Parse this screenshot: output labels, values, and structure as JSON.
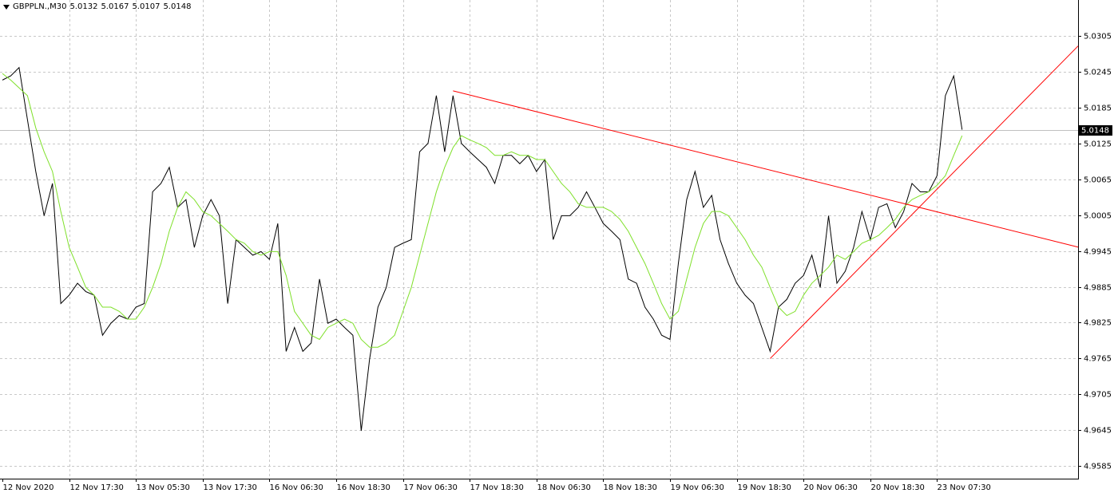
{
  "chart_data": {
    "type": "line",
    "title": "GBPPLN.,M30",
    "ohlc": [
      5.0132,
      5.0167,
      5.0107,
      5.0148
    ],
    "categories": [
      "12 Nov 2020",
      null,
      null,
      null,
      null,
      null,
      null,
      null,
      "12 Nov 17:30",
      null,
      null,
      null,
      null,
      null,
      null,
      null,
      "13 Nov 05:30",
      null,
      null,
      null,
      null,
      null,
      null,
      null,
      "13 Nov 17:30",
      null,
      null,
      null,
      null,
      null,
      null,
      null,
      "16 Nov 06:30",
      null,
      null,
      null,
      null,
      null,
      null,
      null,
      "16 Nov 18:30",
      null,
      null,
      null,
      null,
      null,
      null,
      null,
      "17 Nov 06:30",
      null,
      null,
      null,
      null,
      null,
      null,
      null,
      "17 Nov 18:30",
      null,
      null,
      null,
      null,
      null,
      null,
      null,
      "18 Nov 06:30",
      null,
      null,
      null,
      null,
      null,
      null,
      null,
      "18 Nov 18:30",
      null,
      null,
      null,
      null,
      null,
      null,
      null,
      "19 Nov 06:30",
      null,
      null,
      null,
      null,
      null,
      null,
      null,
      "19 Nov 18:30",
      null,
      null,
      null,
      null,
      null,
      null,
      null,
      "20 Nov 06:30",
      null,
      null,
      null,
      null,
      null,
      null,
      null,
      "20 Nov 18:30",
      null,
      null,
      null,
      null,
      null,
      null,
      null,
      "23 Nov 07:30",
      null,
      null,
      null
    ],
    "series": [
      {
        "color": "#000000",
        "values": [
          5.0231,
          5.0238,
          5.0252,
          5.0165,
          5.0078,
          5.0004,
          5.0058,
          4.9857,
          4.9871,
          4.9891,
          4.9877,
          4.9871,
          4.9804,
          4.9824,
          4.9837,
          4.9831,
          4.9851,
          4.9857,
          5.0044,
          5.0058,
          5.0085,
          5.0018,
          5.0031,
          4.9951,
          5.0004,
          5.0031,
          5.0004,
          4.9857,
          4.9964,
          4.9951,
          4.9938,
          4.9944,
          4.9931,
          4.9991,
          4.9777,
          4.9817,
          4.9777,
          4.9791,
          4.9898,
          4.9824,
          4.9831,
          4.9817,
          4.9804,
          4.9644,
          4.9764,
          4.9851,
          4.9884,
          4.9951,
          4.9958,
          4.9964,
          5.0111,
          5.0125,
          5.0205,
          5.0111,
          5.0205,
          5.0125,
          5.0111,
          5.0098,
          5.0085,
          5.0058,
          5.0105,
          5.0105,
          5.0091,
          5.0105,
          5.0078,
          5.0098,
          4.9964,
          5.0004,
          5.0004,
          5.0018,
          5.0044,
          5.0018,
          4.9991,
          4.9978,
          4.9964,
          4.9898,
          4.9891,
          4.9851,
          4.9831,
          4.9804,
          4.9797,
          4.9924,
          5.0031,
          5.0078,
          5.0018,
          5.0038,
          4.9964,
          4.9924,
          4.9891,
          4.9871,
          4.9857,
          4.9817,
          4.9777,
          4.9851,
          4.9864,
          4.9891,
          4.9904,
          4.9938,
          4.9884,
          5.0004,
          4.9891,
          4.9911,
          4.9951,
          5.0011,
          4.9964,
          5.0018,
          5.0024,
          4.9984,
          5.0011,
          5.0058,
          5.0044,
          5.0044,
          5.0071,
          5.0205,
          5.0238,
          5.0148
        ]
      },
      {
        "color": "#7fe02a",
        "values": [
          5.0242,
          5.0231,
          5.0218,
          5.0205,
          5.0151,
          5.0111,
          5.0078,
          5.0011,
          4.9951,
          4.9918,
          4.9884,
          4.9871,
          4.9851,
          4.9851,
          4.9844,
          4.9831,
          4.9831,
          4.9851,
          4.9884,
          4.9924,
          4.9978,
          5.0018,
          5.0044,
          5.0031,
          5.0011,
          5.0004,
          4.9991,
          4.9978,
          4.9964,
          4.9958,
          4.9944,
          4.9938,
          4.9944,
          4.9944,
          4.9904,
          4.9844,
          4.9824,
          4.9804,
          4.9797,
          4.9817,
          4.9824,
          4.9831,
          4.9824,
          4.9797,
          4.9784,
          4.9784,
          4.9791,
          4.9804,
          4.9844,
          4.9884,
          4.9938,
          4.9991,
          5.0044,
          5.0085,
          5.0118,
          5.0138,
          5.0131,
          5.0125,
          5.0118,
          5.0105,
          5.0105,
          5.0111,
          5.0105,
          5.0105,
          5.0098,
          5.0098,
          5.0078,
          5.0058,
          5.0044,
          5.0024,
          5.0018,
          5.0018,
          5.0018,
          5.0011,
          4.9998,
          4.9978,
          4.9951,
          4.9924,
          4.9891,
          4.9857,
          4.9831,
          4.9844,
          4.9898,
          4.9951,
          4.9991,
          5.0011,
          5.0011,
          5.0004,
          4.9984,
          4.9964,
          4.9938,
          4.9918,
          4.9884,
          4.9851,
          4.9837,
          4.9844,
          4.9871,
          4.9891,
          4.9904,
          4.9918,
          4.9938,
          4.9931,
          4.9944,
          4.9958,
          4.9964,
          4.9971,
          4.9984,
          4.9998,
          5.0018,
          5.0031,
          5.0038,
          5.0044,
          5.0055,
          5.0071,
          5.0105,
          5.0138
        ]
      }
    ],
    "trendlines": [
      {
        "color": "#ff0000",
        "x": [
          54,
          115
        ],
        "y": [
          5.0213,
          5.0
        ],
        "ray": true
      },
      {
        "color": "#ff0000",
        "x": [
          92,
          115
        ],
        "y": [
          4.9765,
          5.0091
        ],
        "ray": true
      }
    ],
    "price_line_color": "#c0c0c0",
    "ylim": [
      4.9564,
      5.0365
    ],
    "yticks": [
      5.0305,
      5.0245,
      5.0185,
      5.0125,
      5.0065,
      5.0005,
      4.9945,
      4.9885,
      4.9825,
      4.9765,
      4.9705,
      4.9645,
      4.9585
    ],
    "grid": true
  }
}
